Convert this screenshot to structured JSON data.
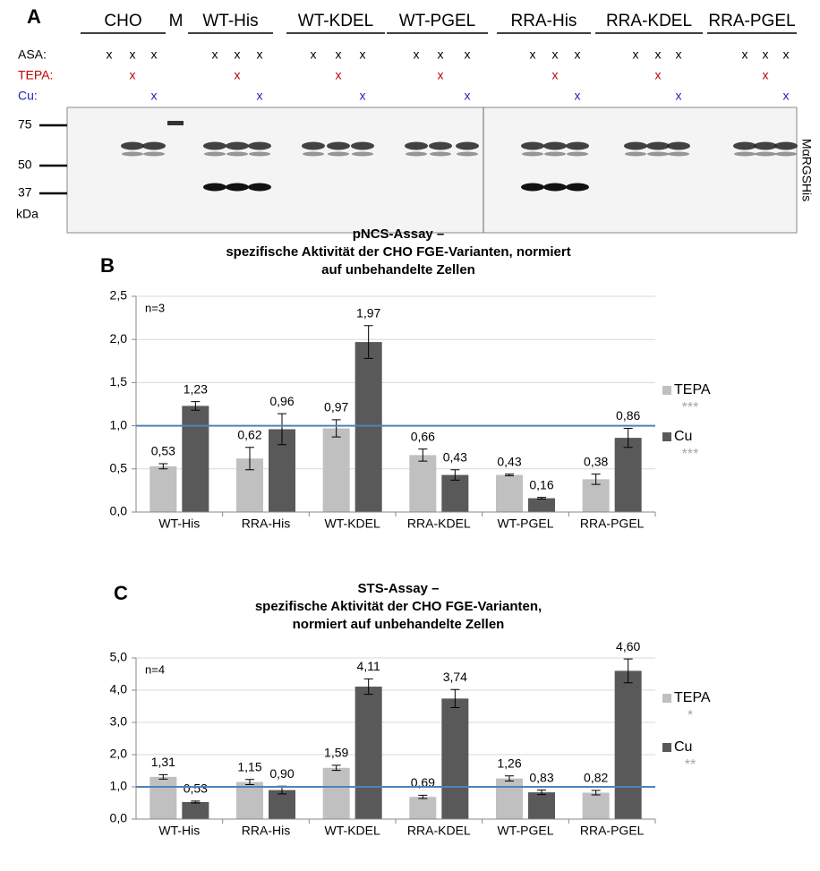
{
  "blot": {
    "panel": "A",
    "groups": [
      "CHO",
      "M",
      "WT-His",
      "WT-KDEL",
      "WT-PGEL",
      "RRA-His",
      "RRA-KDEL",
      "RRA-PGEL"
    ],
    "rows": [
      {
        "label": "ASA:",
        "color": "#000000",
        "marks": [
          [
            "x",
            "x",
            "x"
          ],
          null,
          [
            "x",
            "x",
            "x"
          ],
          [
            "x",
            "x",
            "x"
          ],
          [
            "x",
            "x",
            "x"
          ],
          [
            "x",
            "x",
            "x"
          ],
          [
            "x",
            "x",
            "x"
          ],
          [
            "x",
            "x",
            "x"
          ]
        ]
      },
      {
        "label": "TEPA:",
        "color": "#c00000",
        "marks": [
          [
            null,
            "x",
            null
          ],
          null,
          [
            null,
            "x",
            null
          ],
          [
            null,
            "x",
            null
          ],
          [
            null,
            "x",
            null
          ],
          [
            null,
            "x",
            null
          ],
          [
            null,
            "x",
            null
          ],
          [
            null,
            "x",
            null
          ]
        ]
      },
      {
        "label": "Cu:",
        "color": "#2222bb",
        "marks": [
          [
            null,
            null,
            "x"
          ],
          null,
          [
            null,
            null,
            "x"
          ],
          [
            null,
            null,
            "x"
          ],
          [
            null,
            null,
            "x"
          ],
          [
            null,
            null,
            "x"
          ],
          [
            null,
            null,
            "x"
          ],
          [
            null,
            null,
            "x"
          ]
        ]
      }
    ],
    "markers": [
      "75",
      "50",
      "37"
    ],
    "marker_unit": "kDa",
    "antibody": "MαRGSHis"
  },
  "chart_data": [
    {
      "type": "bar",
      "panel": "B",
      "title": [
        "pNCS-Assay –",
        "spezifische Aktivität der CHO FGE-Varianten, normiert",
        "auf unbehandelte Zellen"
      ],
      "annotation": "n=3",
      "categories": [
        "WT-His",
        "RRA-His",
        "WT-KDEL",
        "RRA-KDEL",
        "WT-PGEL",
        "RRA-PGEL"
      ],
      "series": [
        {
          "name": "TEPA",
          "color": "#c0c0c0",
          "significance": "***",
          "values": [
            0.53,
            0.62,
            0.97,
            0.66,
            0.43,
            0.38
          ],
          "errors": [
            0.03,
            0.13,
            0.1,
            0.07,
            0.01,
            0.06
          ],
          "value_labels": [
            "0,53",
            "0,62",
            "0,97",
            "0,66",
            "0,43",
            "0,38"
          ]
        },
        {
          "name": "Cu",
          "color": "#595959",
          "significance": "***",
          "values": [
            1.23,
            0.96,
            1.97,
            0.43,
            0.16,
            0.86
          ],
          "errors": [
            0.05,
            0.18,
            0.19,
            0.06,
            0.01,
            0.11
          ],
          "value_labels": [
            "1,23",
            "0,96",
            "1,97",
            "0,43",
            "0,16",
            "0,86"
          ]
        }
      ],
      "ylim": [
        0,
        2.5
      ],
      "yticks": [
        {
          "value": 0,
          "label": "0,0"
        },
        {
          "value": 0.5,
          "label": "0,5"
        },
        {
          "value": 1,
          "label": "1,0"
        },
        {
          "value": 1.5,
          "label": "1,5"
        },
        {
          "value": 2,
          "label": "2,0"
        },
        {
          "value": 2.5,
          "label": "2,5"
        }
      ],
      "grid": true,
      "reference_line": 1,
      "reference_color": "#4f81bd",
      "legend": "right"
    },
    {
      "type": "bar",
      "panel": "C",
      "title": [
        "STS-Assay –",
        "spezifische Aktivität der CHO FGE-Varianten,",
        "normiert auf unbehandelte Zellen"
      ],
      "annotation": "n=4",
      "categories": [
        "WT-His",
        "RRA-His",
        "WT-KDEL",
        "RRA-KDEL",
        "WT-PGEL",
        "RRA-PGEL"
      ],
      "series": [
        {
          "name": "TEPA",
          "color": "#c0c0c0",
          "significance": "*",
          "values": [
            1.31,
            1.15,
            1.59,
            0.69,
            1.26,
            0.82
          ],
          "errors": [
            0.07,
            0.08,
            0.08,
            0.05,
            0.08,
            0.07
          ],
          "value_labels": [
            "1,31",
            "1,15",
            "1,59",
            "0,69",
            "1,26",
            "0,82"
          ]
        },
        {
          "name": "Cu",
          "color": "#595959",
          "significance": "**",
          "values": [
            0.53,
            0.9,
            4.11,
            3.74,
            0.83,
            4.6
          ],
          "errors": [
            0.03,
            0.12,
            0.24,
            0.28,
            0.07,
            0.37
          ],
          "value_labels": [
            "0,53",
            "0,90",
            "4,11",
            "3,74",
            "0,83",
            "4,60"
          ]
        }
      ],
      "ylim": [
        0,
        5
      ],
      "yticks": [
        {
          "value": 0,
          "label": "0,0"
        },
        {
          "value": 1,
          "label": "1,0"
        },
        {
          "value": 2,
          "label": "2,0"
        },
        {
          "value": 3,
          "label": "3,0"
        },
        {
          "value": 4,
          "label": "4,0"
        },
        {
          "value": 5,
          "label": "5,0"
        }
      ],
      "grid": true,
      "reference_line": 1,
      "reference_color": "#4f81bd",
      "legend": "right"
    }
  ]
}
